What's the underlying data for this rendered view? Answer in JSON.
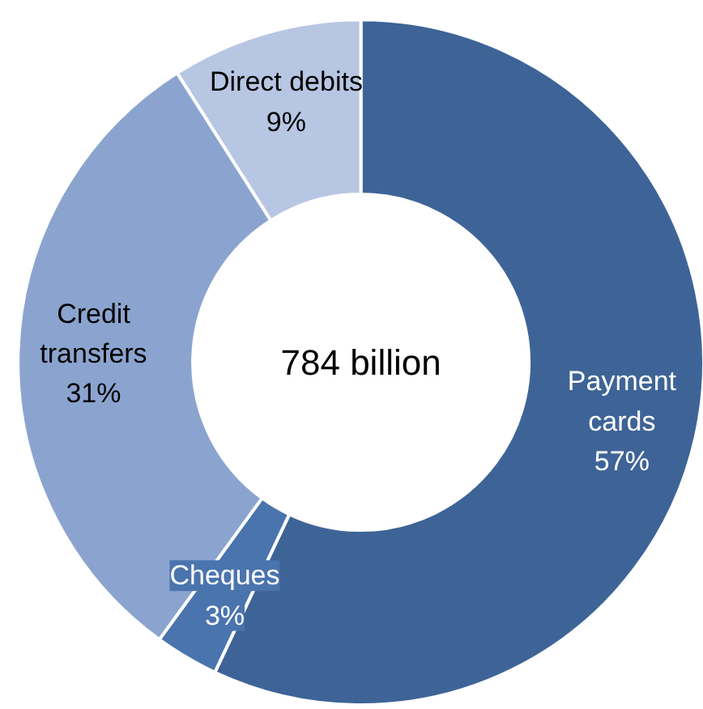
{
  "chart_data": {
    "type": "donut",
    "categories": [
      "Payment cards",
      "Cheques",
      "Credit transfers",
      "Direct debits"
    ],
    "values": [
      57,
      3,
      31,
      9
    ],
    "colors": [
      "#3e6497",
      "#4a74ad",
      "#8ba4cf",
      "#b7c6e2"
    ],
    "value_labels": [
      "57%",
      "3%",
      "31%",
      "9%"
    ],
    "annotations": [
      "784 billion"
    ]
  }
}
